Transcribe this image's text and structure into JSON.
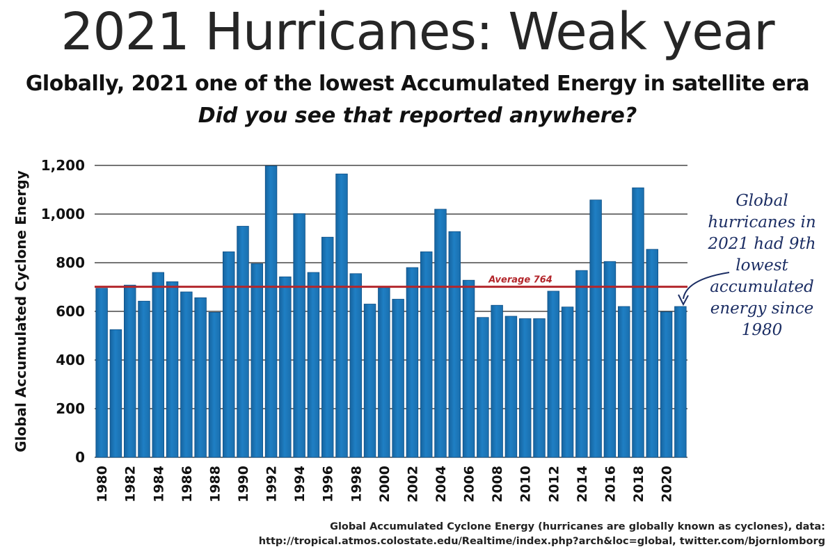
{
  "title": "2021 Hurricanes: Weak year",
  "subtitle": "Globally, 2021 one of the lowest Accumulated Energy in satellite era",
  "subtitle2": "Did you see that reported anywhere?",
  "annotation_lines": [
    "Global",
    "hurricanes in",
    "2021 had 9th",
    "lowest",
    "accumulated",
    "energy since",
    "1980"
  ],
  "source_lines": [
    "Global Accumulated Cyclone Energy (hurricanes are globally known as cyclones), data:",
    "http://tropical.atmos.colostate.edu/Realtime/index.php?arch&loc=global, twitter.com/bjornlomborg"
  ],
  "colors": {
    "bar": "#1f7fc4",
    "bar_edge": "#0f4f86",
    "average_line": "#b3262b",
    "annotation": "#1b2d63",
    "grid": "#222222"
  },
  "chart_data": {
    "type": "bar",
    "ylabel": "Global Accumulated Cyclone Energy",
    "xlabel": "",
    "ylim": [
      0,
      1200
    ],
    "yticks": [
      0,
      200,
      400,
      600,
      800,
      1000,
      1200
    ],
    "ytick_labels": [
      "0",
      "200",
      "400",
      "600",
      "800",
      "1,000",
      "1,200"
    ],
    "grid": "horizontal",
    "categories": [
      1980,
      1981,
      1982,
      1983,
      1984,
      1985,
      1986,
      1987,
      1988,
      1989,
      1990,
      1991,
      1992,
      1993,
      1994,
      1995,
      1996,
      1997,
      1998,
      1999,
      2000,
      2001,
      2002,
      2003,
      2004,
      2005,
      2006,
      2007,
      2008,
      2009,
      2010,
      2011,
      2012,
      2013,
      2014,
      2015,
      2016,
      2017,
      2018,
      2019,
      2020,
      2021
    ],
    "xtick_labels": [
      "1980",
      "",
      "1982",
      "",
      "1984",
      "",
      "1986",
      "",
      "1988",
      "",
      "1990",
      "",
      "1992",
      "",
      "1994",
      "",
      "1996",
      "",
      "1998",
      "",
      "2000",
      "",
      "2002",
      "",
      "2004",
      "",
      "2006",
      "",
      "2008",
      "",
      "2010",
      "",
      "2012",
      "",
      "2014",
      "",
      "2016",
      "",
      "2018",
      "",
      "2020",
      ""
    ],
    "values": [
      695,
      525,
      708,
      642,
      760,
      722,
      680,
      656,
      596,
      845,
      950,
      796,
      1198,
      742,
      1002,
      760,
      905,
      1165,
      755,
      630,
      698,
      650,
      780,
      845,
      1020,
      928,
      728,
      575,
      625,
      580,
      570,
      570,
      683,
      618,
      768,
      1058,
      805,
      620,
      1108,
      855,
      598,
      620
    ],
    "average": {
      "value": 764,
      "label": "Average 764"
    }
  }
}
